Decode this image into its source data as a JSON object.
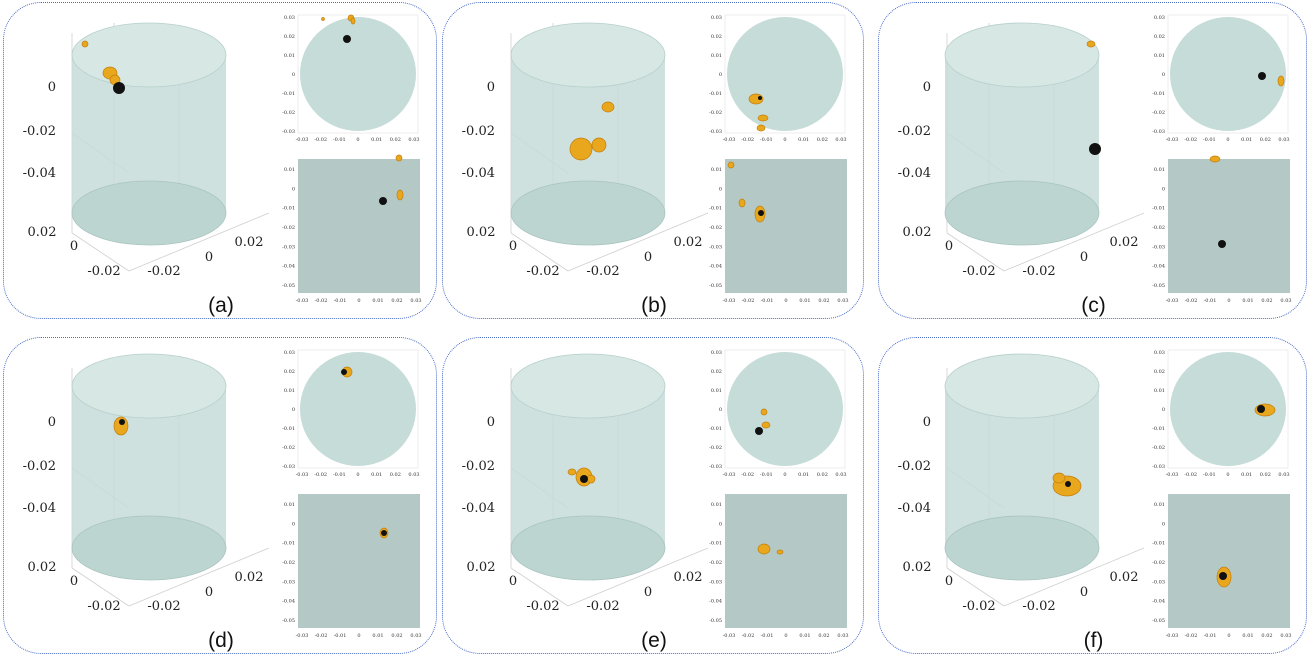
{
  "colors": {
    "cyl": "#c5dcd8",
    "particle": "#e8a71c",
    "particle_dark": "#c47e0e",
    "center": "#111111",
    "border": "#4b6cc9",
    "side_bg": "#b4c9c6"
  },
  "panels": [
    {
      "label": "(a)",
      "zticks": [
        "0",
        "-0.02",
        "-0.04"
      ],
      "xticks": [
        "0.02",
        "0",
        "-0.02"
      ],
      "yticks": [
        "0.02",
        "0",
        "-0.02"
      ],
      "top_yticks": [
        "0.03",
        "0.02",
        "0.01",
        "0",
        "-0.01",
        "-0.02",
        "-0.03"
      ],
      "top_xticks": [
        "-0.03",
        "-0.02",
        "-0.01",
        "0",
        "0.01",
        "0.02",
        "0.03"
      ],
      "side_yticks": [
        "0.01",
        "0",
        "-0.01",
        "-0.02",
        "-0.03",
        "-0.04",
        "-0.05"
      ],
      "side_xticks": [
        "-0.03",
        "-0.02",
        "-0.01",
        "0",
        "0.01",
        "0.02",
        "0.03"
      ]
    },
    {
      "label": "(b)",
      "zticks": [
        "0",
        "-0.02",
        "-0.04"
      ],
      "xticks": [
        "0.02",
        "0",
        "-0.02"
      ],
      "yticks": [
        "0.02",
        "0",
        "-0.02"
      ],
      "top_yticks": [
        "0.03",
        "0.02",
        "0.01",
        "0",
        "-0.01",
        "-0.02",
        "-0.03"
      ],
      "top_xticks": [
        "-0.03",
        "-0.02",
        "-0.01",
        "0",
        "0.01",
        "0.02",
        "0.03"
      ],
      "side_yticks": [
        "0.01",
        "0",
        "-0.01",
        "-0.02",
        "-0.03",
        "-0.04",
        "-0.05"
      ],
      "side_xticks": [
        "-0.03",
        "-0.02",
        "-0.01",
        "0",
        "0.01",
        "0.02",
        "0.03"
      ]
    },
    {
      "label": "(c)",
      "zticks": [
        "0",
        "-0.02",
        "-0.04"
      ],
      "xticks": [
        "0.02",
        "0",
        "-0.02"
      ],
      "yticks": [
        "0.02",
        "0",
        "-0.02"
      ],
      "top_yticks": [
        "0.03",
        "0.02",
        "0.01",
        "0",
        "-0.01",
        "-0.02",
        "-0.03"
      ],
      "top_xticks": [
        "-0.03",
        "-0.02",
        "-0.01",
        "0",
        "0.01",
        "0.02",
        "0.03"
      ],
      "side_yticks": [
        "0.01",
        "0",
        "-0.01",
        "-0.02",
        "-0.03",
        "-0.04",
        "-0.05"
      ],
      "side_xticks": [
        "-0.03",
        "-0.02",
        "-0.01",
        "0",
        "0.01",
        "0.02",
        "0.03"
      ]
    },
    {
      "label": "(d)",
      "zticks": [
        "0",
        "-0.02",
        "-0.04"
      ],
      "xticks": [
        "0.02",
        "0",
        "-0.02"
      ],
      "yticks": [
        "0.02",
        "0",
        "-0.02"
      ],
      "top_yticks": [
        "0.03",
        "0.02",
        "0.01",
        "0",
        "-0.01",
        "-0.02",
        "-0.03"
      ],
      "top_xticks": [
        "-0.03",
        "-0.02",
        "-0.01",
        "0",
        "0.01",
        "0.02",
        "0.03"
      ],
      "side_yticks": [
        "0.01",
        "0",
        "-0.01",
        "-0.02",
        "-0.03",
        "-0.04",
        "-0.05"
      ],
      "side_xticks": [
        "-0.03",
        "-0.02",
        "-0.01",
        "0",
        "0.01",
        "0.02",
        "0.03"
      ]
    },
    {
      "label": "(e)",
      "zticks": [
        "0",
        "-0.02",
        "-0.04"
      ],
      "xticks": [
        "0.02",
        "0",
        "-0.02"
      ],
      "yticks": [
        "0.02",
        "0",
        "-0.02"
      ],
      "top_yticks": [
        "0.03",
        "0.02",
        "0.01",
        "0",
        "-0.01",
        "-0.02",
        "-0.03"
      ],
      "top_xticks": [
        "-0.03",
        "-0.02",
        "-0.01",
        "0",
        "0.01",
        "0.02",
        "0.03"
      ],
      "side_yticks": [
        "0.01",
        "0",
        "-0.01",
        "-0.02",
        "-0.03",
        "-0.04",
        "-0.05"
      ],
      "side_xticks": [
        "-0.03",
        "-0.02",
        "-0.01",
        "0",
        "0.01",
        "0.02",
        "0.03"
      ]
    },
    {
      "label": "(f)",
      "zticks": [
        "0",
        "-0.02",
        "-0.04"
      ],
      "xticks": [
        "0.02",
        "0",
        "-0.02"
      ],
      "yticks": [
        "0.02",
        "0",
        "-0.02"
      ],
      "top_yticks": [
        "0.03",
        "0.02",
        "0.01",
        "0",
        "-0.01",
        "-0.02",
        "-0.03"
      ],
      "top_xticks": [
        "-0.03",
        "-0.02",
        "-0.01",
        "0",
        "0.01",
        "0.02",
        "0.03"
      ],
      "side_yticks": [
        "0.01",
        "0",
        "-0.01",
        "-0.02",
        "-0.03",
        "-0.04",
        "-0.05"
      ],
      "side_xticks": [
        "-0.03",
        "-0.02",
        "-0.01",
        "0",
        "0.01",
        "0.02",
        "0.03"
      ]
    }
  ]
}
